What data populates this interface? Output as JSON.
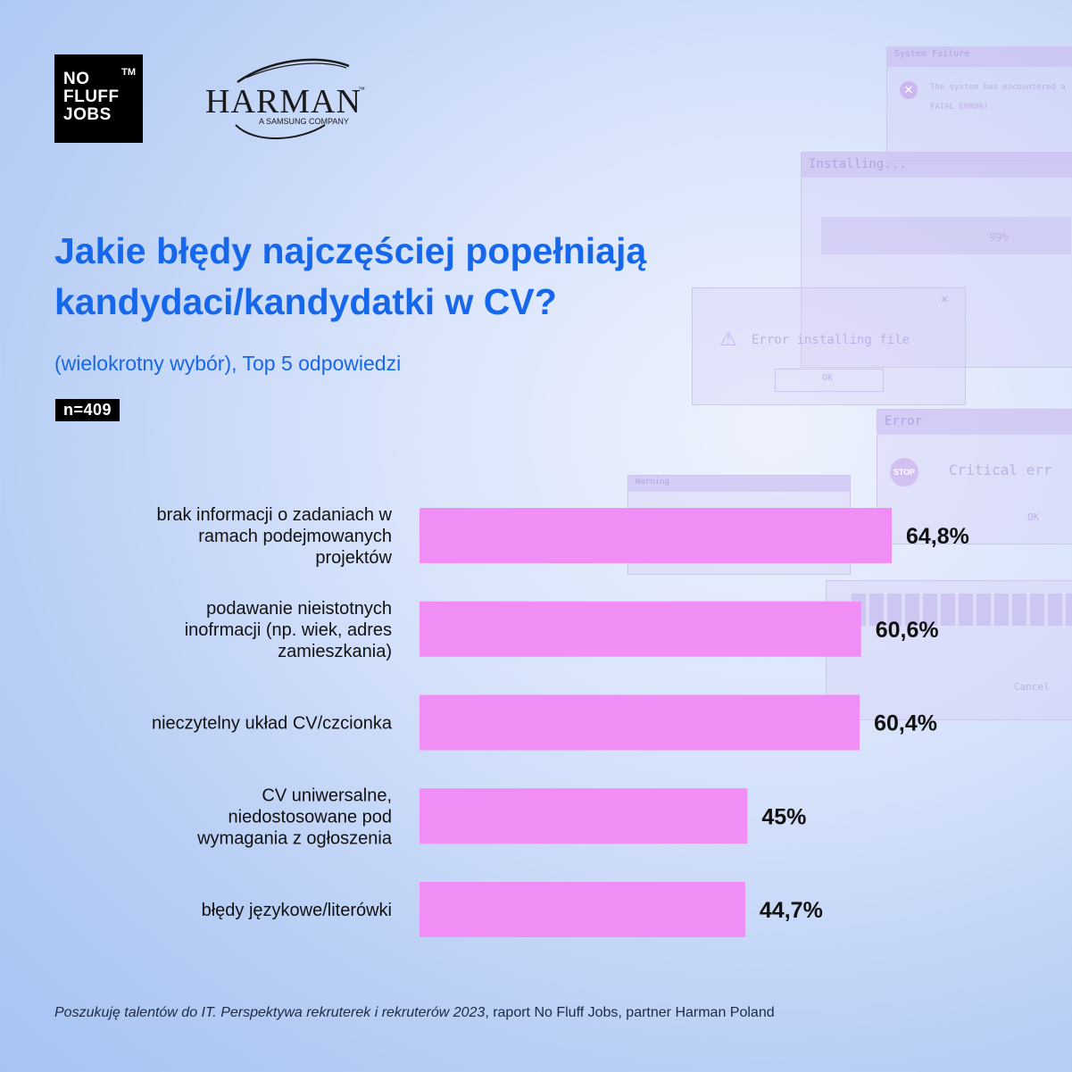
{
  "brand": {
    "nfj_lines": [
      "NO",
      "FLUFF",
      "JOBS"
    ],
    "nfj_tm": "TM",
    "harman_name": "HARMAN",
    "harman_tm": "™",
    "harman_tagline": "A SAMSUNG COMPANY"
  },
  "background_windows": {
    "system_failure_title": "System Failure",
    "system_failure_text": "The system has encountered a",
    "system_failure_fatal": "FATAL ERROR!",
    "installing_title": "Installing...",
    "installing_percent": "99%",
    "error_install_text": "Error installing file",
    "ok_label": "OK",
    "error_title": "Error",
    "stop_label": "STOP",
    "critical_text": "Critical err",
    "warning_title": "Warning",
    "cancel_label": "Cancel"
  },
  "header": {
    "title_line1": "Jakie błędy najczęściej popełniają",
    "title_line2": "kandydaci/kandydatki w CV?",
    "subtitle": "(wielokrotny wybór), Top 5 odpowiedzi",
    "sample": "n=409"
  },
  "colors": {
    "bar": "#f08ef5",
    "title": "#1767ea"
  },
  "chart_data": {
    "type": "bar",
    "orientation": "horizontal",
    "categories": [
      [
        "brak informacji o zadaniach w",
        "ramach podejmowanych",
        "projektów"
      ],
      [
        "podawanie nieistotnych",
        "inofrmacji (np. wiek, adres",
        "zamieszkania)"
      ],
      [
        "nieczytelny układ CV/czcionka"
      ],
      [
        "CV uniwersalne,",
        "niedostosowane pod",
        "wymagania z ogłoszenia"
      ],
      [
        "błędy językowe/literówki"
      ]
    ],
    "values": [
      64.8,
      60.6,
      60.4,
      45,
      44.7
    ],
    "value_labels": [
      "64,8%",
      "60,6%",
      "60,4%",
      "45%",
      "44,7%"
    ],
    "unit": "%",
    "grid": false,
    "legend": "none"
  },
  "footer": {
    "source_italic": "Poszukuję talentów do IT. Perspektywa rekruterek i rekruterów 2023",
    "source_rest": ", raport No Fluff Jobs, partner Harman Poland"
  }
}
